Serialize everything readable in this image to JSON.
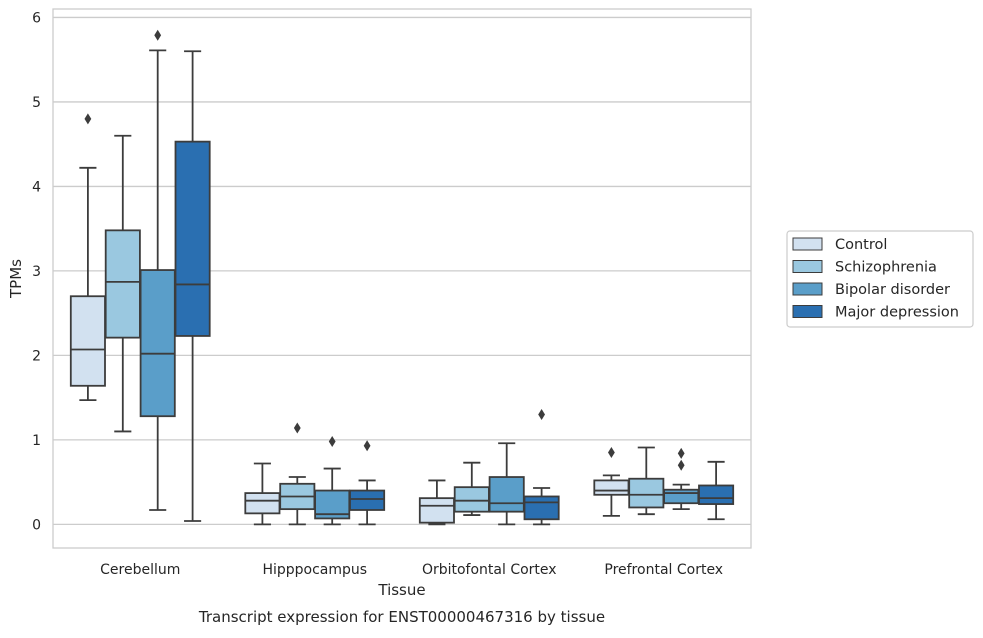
{
  "caption": "Transcript expression for ENST00000467316 by tissue",
  "chart_data": {
    "type": "box",
    "title": "",
    "xlabel": "Tissue",
    "ylabel": "TPMs",
    "ylim": [
      -0.28,
      6.1
    ],
    "yticks": [
      0,
      1,
      2,
      3,
      4,
      5,
      6
    ],
    "grid": "horizontal",
    "legend_position": "center-right",
    "categories": [
      "Cerebellum",
      "Hipppocampus",
      "Orbitofontal Cortex",
      "Prefrontal Cortex"
    ],
    "series": [
      {
        "name": "Control",
        "color": "#d2e1f0",
        "boxes": [
          {
            "whislo": 1.47,
            "q1": 1.64,
            "med": 2.07,
            "q3": 2.7,
            "whishi": 4.22,
            "fliers": [
              4.8
            ]
          },
          {
            "whislo": 0.0,
            "q1": 0.13,
            "med": 0.28,
            "q3": 0.37,
            "whishi": 0.72,
            "fliers": []
          },
          {
            "whislo": 0.0,
            "q1": 0.02,
            "med": 0.22,
            "q3": 0.31,
            "whishi": 0.52,
            "fliers": []
          },
          {
            "whislo": 0.1,
            "q1": 0.35,
            "med": 0.4,
            "q3": 0.52,
            "whishi": 0.58,
            "fliers": [
              0.85
            ]
          }
        ]
      },
      {
        "name": "Schizophrenia",
        "color": "#9ac8e0",
        "boxes": [
          {
            "whislo": 1.1,
            "q1": 2.21,
            "med": 2.87,
            "q3": 3.48,
            "whishi": 4.6,
            "fliers": []
          },
          {
            "whislo": 0.0,
            "q1": 0.18,
            "med": 0.33,
            "q3": 0.48,
            "whishi": 0.56,
            "fliers": [
              1.14
            ]
          },
          {
            "whislo": 0.11,
            "q1": 0.15,
            "med": 0.28,
            "q3": 0.44,
            "whishi": 0.73,
            "fliers": []
          },
          {
            "whislo": 0.12,
            "q1": 0.2,
            "med": 0.35,
            "q3": 0.54,
            "whishi": 0.91,
            "fliers": []
          }
        ]
      },
      {
        "name": "Bipolar disorder",
        "color": "#5a9ec9",
        "boxes": [
          {
            "whislo": 0.17,
            "q1": 1.28,
            "med": 2.02,
            "q3": 3.01,
            "whishi": 5.61,
            "fliers": [
              5.79
            ]
          },
          {
            "whislo": 0.0,
            "q1": 0.07,
            "med": 0.12,
            "q3": 0.4,
            "whishi": 0.66,
            "fliers": [
              0.98
            ]
          },
          {
            "whislo": 0.0,
            "q1": 0.15,
            "med": 0.25,
            "q3": 0.56,
            "whishi": 0.96,
            "fliers": []
          },
          {
            "whislo": 0.18,
            "q1": 0.25,
            "med": 0.37,
            "q3": 0.41,
            "whishi": 0.47,
            "fliers": [
              0.7,
              0.84
            ]
          }
        ]
      },
      {
        "name": "Major depression",
        "color": "#2a6fb1",
        "boxes": [
          {
            "whislo": 0.04,
            "q1": 2.23,
            "med": 2.84,
            "q3": 4.53,
            "whishi": 5.6,
            "fliers": []
          },
          {
            "whislo": 0.0,
            "q1": 0.17,
            "med": 0.3,
            "q3": 0.4,
            "whishi": 0.52,
            "fliers": [
              0.93
            ]
          },
          {
            "whislo": 0.0,
            "q1": 0.06,
            "med": 0.26,
            "q3": 0.33,
            "whishi": 0.43,
            "fliers": [
              1.3
            ]
          },
          {
            "whislo": 0.06,
            "q1": 0.24,
            "med": 0.31,
            "q3": 0.46,
            "whishi": 0.74,
            "fliers": []
          }
        ]
      }
    ]
  }
}
